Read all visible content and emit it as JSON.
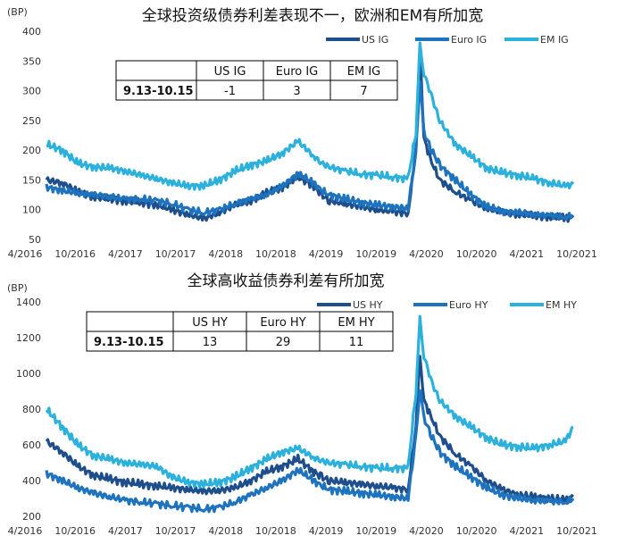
{
  "chart_data": [
    {
      "type": "line",
      "title": "全球投资级债券利差表现不一，欧洲和EM有所加宽",
      "unit_label": "(BP)",
      "ylim": [
        50,
        400
      ],
      "y_ticks": [
        50,
        100,
        150,
        200,
        250,
        300,
        350,
        400
      ],
      "x_ticks": [
        "4/2016",
        "10/2016",
        "4/2017",
        "10/2017",
        "4/2018",
        "10/2018",
        "4/2019",
        "10/2019",
        "4/2020",
        "10/2020",
        "4/2021",
        "10/2021"
      ],
      "xlim": [
        0,
        67
      ],
      "grid": false,
      "legend_position": "top-right",
      "series": [
        {
          "name": "US IG",
          "color": "#1f4e8c",
          "x": [
            0,
            2,
            4,
            6,
            8,
            10,
            12,
            14,
            16,
            18,
            20,
            22,
            24,
            26,
            28,
            30,
            32,
            34,
            35,
            36,
            38,
            40,
            42,
            44,
            46,
            47,
            47.5,
            48,
            49,
            50,
            52,
            54,
            56,
            58,
            60,
            62,
            64,
            66,
            67
          ],
          "values": [
            150,
            145,
            130,
            122,
            118,
            115,
            112,
            108,
            100,
            92,
            85,
            95,
            108,
            115,
            128,
            138,
            155,
            140,
            125,
            115,
            110,
            105,
            100,
            97,
            94,
            200,
            375,
            220,
            180,
            150,
            130,
            115,
            102,
            96,
            92,
            90,
            88,
            86,
            87
          ]
        },
        {
          "name": "Euro IG",
          "color": "#1e73be",
          "x": [
            0,
            2,
            4,
            6,
            8,
            10,
            12,
            14,
            16,
            18,
            20,
            22,
            24,
            26,
            28,
            30,
            32,
            34,
            35,
            36,
            38,
            40,
            42,
            44,
            46,
            47,
            47.5,
            48,
            49,
            50,
            52,
            54,
            56,
            58,
            60,
            62,
            64,
            66,
            67
          ],
          "values": [
            138,
            132,
            128,
            125,
            122,
            118,
            118,
            115,
            110,
            100,
            95,
            100,
            110,
            118,
            125,
            140,
            160,
            145,
            132,
            125,
            118,
            112,
            108,
            105,
            102,
            200,
            320,
            230,
            200,
            175,
            150,
            125,
            105,
            97,
            95,
            92,
            90,
            88,
            90
          ]
        },
        {
          "name": "EM IG",
          "color": "#2cb1dc",
          "x": [
            0,
            2,
            4,
            6,
            8,
            10,
            12,
            14,
            16,
            18,
            20,
            22,
            24,
            26,
            28,
            30,
            32,
            34,
            35,
            36,
            38,
            40,
            42,
            44,
            46,
            47,
            47.5,
            48,
            49,
            50,
            52,
            54,
            56,
            58,
            60,
            62,
            64,
            66,
            67
          ],
          "values": [
            210,
            200,
            178,
            172,
            170,
            165,
            158,
            152,
            145,
            140,
            140,
            150,
            165,
            175,
            182,
            195,
            215,
            190,
            178,
            172,
            165,
            160,
            158,
            155,
            152,
            230,
            375,
            330,
            290,
            250,
            210,
            190,
            170,
            162,
            158,
            152,
            145,
            140,
            143
          ]
        }
      ],
      "table": {
        "columns": [
          "US IG",
          "Euro IG",
          "EM IG"
        ],
        "row_label": "9.13-10.15",
        "values": [
          "-1",
          "3",
          "7"
        ]
      }
    },
    {
      "type": "line",
      "title": "全球高收益债券利差有所加宽",
      "unit_label": "(BP)",
      "ylim": [
        200,
        1400
      ],
      "y_ticks": [
        200,
        400,
        600,
        800,
        1000,
        1200,
        1400
      ],
      "x_ticks": [
        "4/2016",
        "10/2016",
        "4/2017",
        "10/2017",
        "4/2018",
        "10/2018",
        "4/2019",
        "10/2019",
        "4/2020",
        "10/2020",
        "4/2021",
        "10/2021"
      ],
      "xlim": [
        0,
        67
      ],
      "grid": false,
      "legend_position": "top-right",
      "series": [
        {
          "name": "US HY",
          "color": "#1f4e8c",
          "x": [
            0,
            2,
            4,
            6,
            8,
            10,
            12,
            14,
            16,
            18,
            20,
            22,
            24,
            26,
            28,
            30,
            32,
            34,
            35,
            36,
            38,
            40,
            42,
            44,
            46,
            47,
            47.5,
            48,
            49,
            50,
            52,
            54,
            56,
            58,
            60,
            62,
            64,
            66,
            67
          ],
          "values": [
            620,
            560,
            480,
            430,
            410,
            390,
            380,
            370,
            360,
            350,
            340,
            345,
            360,
            400,
            450,
            480,
            520,
            450,
            420,
            400,
            390,
            380,
            370,
            360,
            350,
            700,
            1100,
            850,
            750,
            650,
            550,
            480,
            400,
            350,
            320,
            310,
            300,
            290,
            310
          ]
        },
        {
          "name": "Euro HY",
          "color": "#1e73be",
          "x": [
            0,
            2,
            4,
            6,
            8,
            10,
            12,
            14,
            16,
            18,
            20,
            22,
            24,
            26,
            28,
            30,
            32,
            34,
            35,
            36,
            38,
            40,
            42,
            44,
            46,
            47,
            47.5,
            48,
            49,
            50,
            52,
            54,
            56,
            58,
            60,
            62,
            64,
            66,
            67
          ],
          "values": [
            440,
            400,
            360,
            330,
            310,
            290,
            280,
            270,
            260,
            250,
            240,
            250,
            280,
            320,
            360,
            400,
            460,
            400,
            370,
            350,
            340,
            330,
            320,
            310,
            300,
            650,
            920,
            750,
            650,
            560,
            480,
            420,
            360,
            320,
            300,
            290,
            285,
            280,
            300
          ]
        },
        {
          "name": "EM HY",
          "color": "#2cb1dc",
          "x": [
            0,
            2,
            4,
            6,
            8,
            10,
            12,
            14,
            16,
            18,
            20,
            22,
            24,
            26,
            28,
            30,
            32,
            34,
            35,
            36,
            38,
            40,
            42,
            44,
            46,
            47,
            47.5,
            48,
            49,
            50,
            52,
            54,
            56,
            58,
            60,
            62,
            64,
            66,
            67
          ],
          "values": [
            800,
            700,
            600,
            540,
            520,
            500,
            490,
            480,
            420,
            390,
            380,
            390,
            420,
            470,
            520,
            560,
            580,
            530,
            510,
            500,
            490,
            480,
            470,
            470,
            470,
            900,
            1300,
            1100,
            950,
            850,
            760,
            700,
            640,
            600,
            590,
            580,
            600,
            620,
            700
          ]
        }
      ],
      "table": {
        "columns": [
          "US HY",
          "Euro HY",
          "EM HY"
        ],
        "row_label": "9.13-10.15",
        "values": [
          "13",
          "29",
          "11"
        ]
      }
    }
  ]
}
